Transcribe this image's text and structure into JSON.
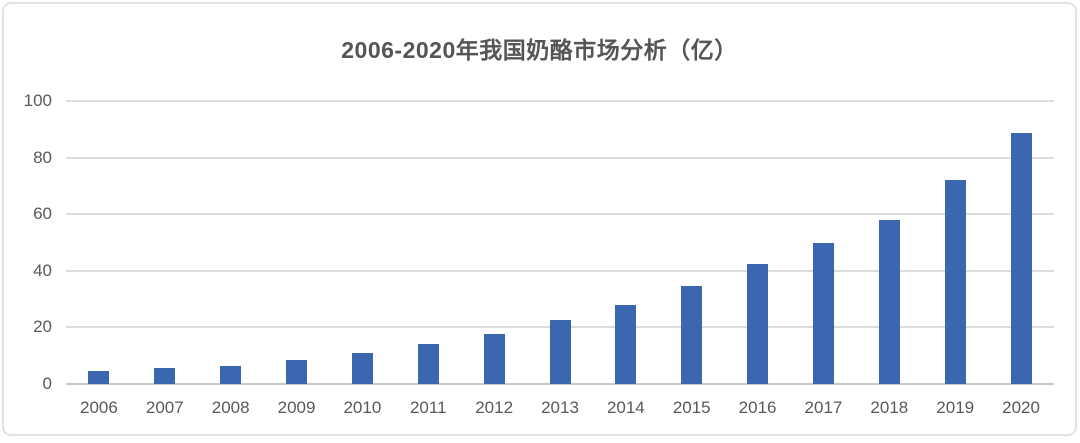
{
  "page": {
    "title": "2006-2020年我国奶酪市场分析（亿）"
  },
  "chart_data": {
    "type": "bar",
    "title": "2006-2020年我国奶酪市场分析（亿）",
    "categories": [
      "2006",
      "2007",
      "2008",
      "2009",
      "2010",
      "2011",
      "2012",
      "2013",
      "2014",
      "2015",
      "2016",
      "2017",
      "2018",
      "2019",
      "2020"
    ],
    "values": [
      4.5,
      5.5,
      6.5,
      8.5,
      11,
      14,
      17.5,
      22.5,
      28,
      34.5,
      42.5,
      49.7,
      58,
      72,
      88.7
    ],
    "xlabel": "",
    "ylabel": "",
    "ylim": [
      0,
      100
    ],
    "yticks": [
      0,
      20,
      40,
      60,
      80,
      100
    ],
    "grid": "horizontal",
    "legend_position": "none",
    "colors": {
      "bar": "#3b66b0",
      "gridline": "#dcdcdc",
      "axis_line": "#c9c9c9",
      "label": "#595959",
      "title": "#555555",
      "card_border": "#e3e3e3",
      "background": "#ffffff"
    }
  }
}
